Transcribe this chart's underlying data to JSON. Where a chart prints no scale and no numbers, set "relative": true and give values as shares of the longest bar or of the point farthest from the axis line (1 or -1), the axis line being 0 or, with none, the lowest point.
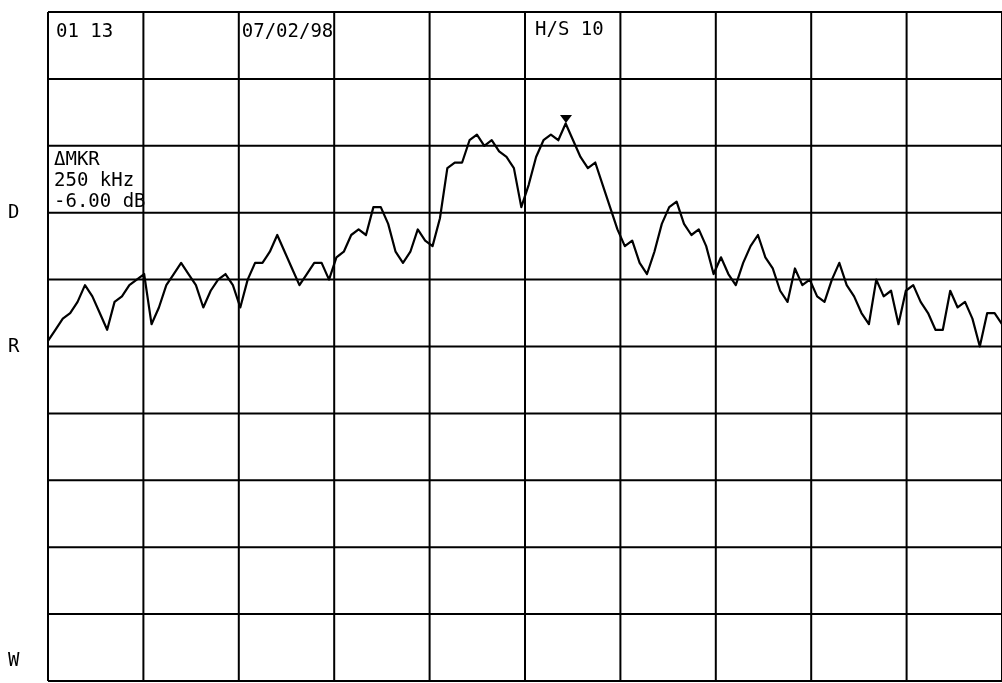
{
  "chart_data": {
    "type": "line",
    "relative": true,
    "grid": true,
    "categories": [
      null,
      null,
      null,
      null,
      null,
      null,
      null,
      null,
      null,
      null,
      null,
      null,
      null,
      null,
      null,
      null,
      null,
      null,
      null,
      null,
      null,
      null,
      null,
      null,
      null,
      null,
      null,
      null,
      null,
      null,
      null,
      null,
      null,
      null,
      null,
      null,
      null,
      null,
      null,
      null,
      null,
      null,
      null,
      null,
      null,
      null,
      null,
      null,
      null,
      null,
      null,
      null,
      null,
      null,
      null,
      null,
      null,
      null,
      null,
      null,
      null,
      null,
      null,
      null,
      null,
      null,
      null,
      null,
      null,
      null,
      null,
      null,
      null,
      null,
      null,
      null,
      null,
      null,
      null,
      null,
      null,
      null,
      null,
      null,
      null,
      null,
      null,
      null,
      null,
      null,
      null,
      null,
      null,
      null,
      null,
      null,
      null,
      null,
      null,
      null,
      null,
      null,
      null,
      null,
      null,
      null,
      null,
      null,
      null,
      null,
      null,
      null,
      null,
      null,
      null,
      null,
      null,
      null,
      null,
      null,
      null,
      null,
      null,
      null,
      null,
      null,
      null,
      null,
      null,
      null
    ],
    "series": [
      {
        "color": "#000000",
        "values": [
          0.61,
          0.63,
          0.65,
          0.66,
          0.68,
          0.71,
          0.69,
          0.66,
          0.63,
          0.68,
          0.69,
          0.71,
          0.72,
          0.73,
          0.64,
          0.67,
          0.71,
          0.73,
          0.75,
          0.73,
          0.71,
          0.67,
          0.7,
          0.72,
          0.73,
          0.71,
          0.67,
          0.72,
          0.75,
          0.75,
          0.77,
          0.8,
          0.77,
          0.74,
          0.71,
          0.73,
          0.75,
          0.75,
          0.72,
          0.76,
          0.77,
          0.8,
          0.81,
          0.8,
          0.85,
          0.85,
          0.82,
          0.77,
          0.75,
          0.77,
          0.81,
          0.79,
          0.78,
          0.83,
          0.92,
          0.93,
          0.93,
          0.97,
          0.98,
          0.96,
          0.97,
          0.95,
          0.94,
          0.92,
          0.85,
          0.89,
          0.94,
          0.97,
          0.98,
          0.97,
          1,
          0.97,
          0.94,
          0.92,
          0.93,
          0.89,
          0.85,
          0.81,
          0.78,
          0.79,
          0.75,
          0.73,
          0.77,
          0.82,
          0.85,
          0.86,
          0.82,
          0.8,
          0.81,
          0.78,
          0.73,
          0.76,
          0.73,
          0.71,
          0.75,
          0.78,
          0.8,
          0.76,
          0.74,
          0.7,
          0.68,
          0.74,
          0.71,
          0.72,
          0.69,
          0.68,
          0.72,
          0.75,
          0.71,
          0.69,
          0.66,
          0.64,
          0.72,
          0.69,
          0.7,
          0.64,
          0.7,
          0.71,
          0.68,
          0.66,
          0.63,
          0.63,
          0.7,
          0.67,
          0.68,
          0.65,
          0.6,
          0.66,
          0.66,
          0.64
        ]
      }
    ],
    "annotations": [
      "01 13",
      "07/02/98",
      "H/S 10",
      "ΔMKR",
      "250 kHz",
      "-6.00 dB",
      "D",
      "R",
      "W"
    ]
  }
}
